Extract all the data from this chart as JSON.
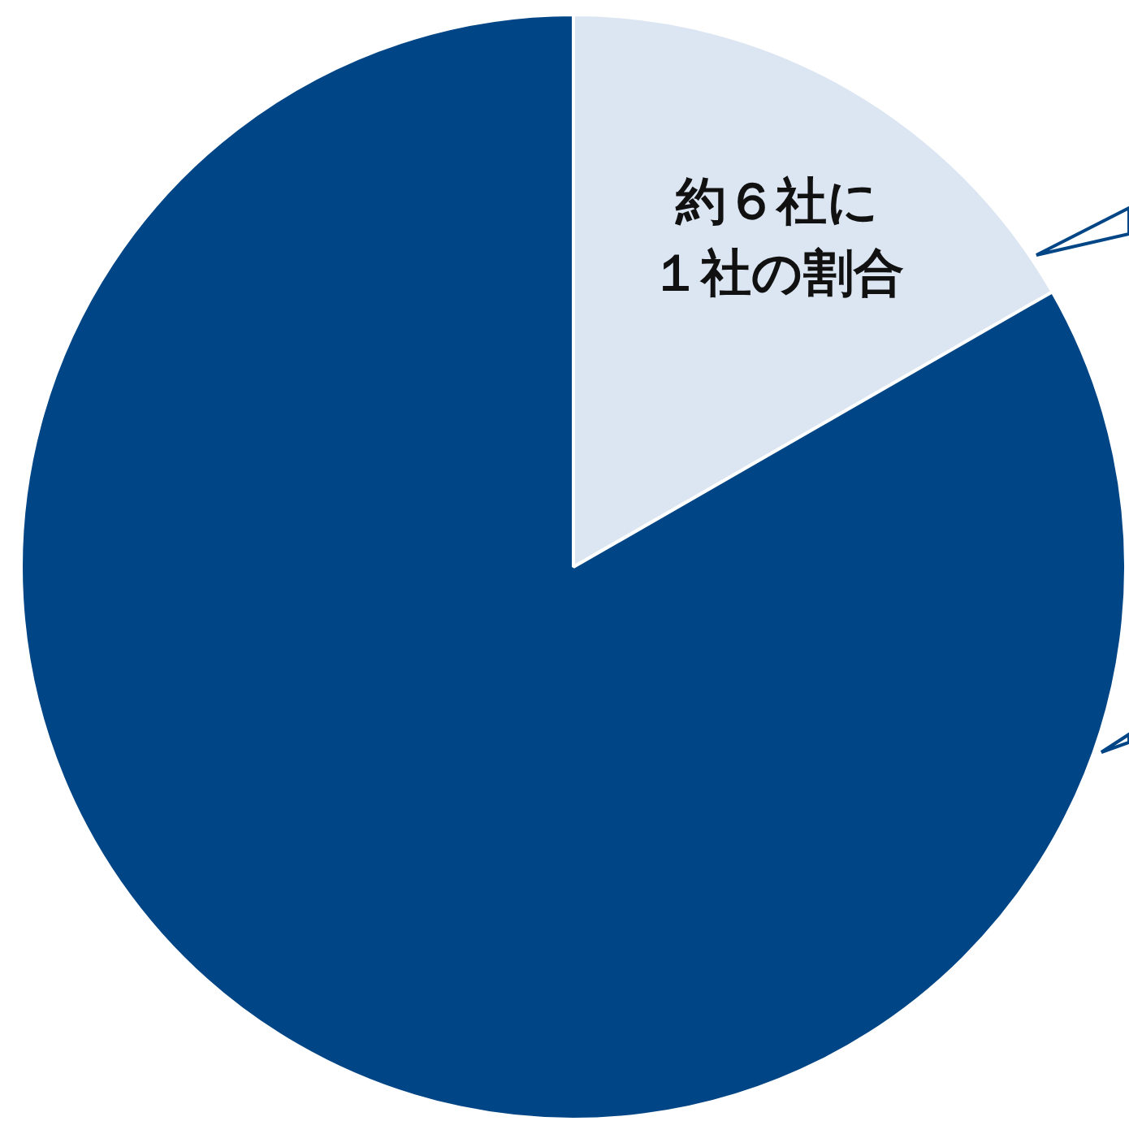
{
  "chart_data": {
    "type": "pie",
    "categories": [
      "約６社に１社の割合",
      null
    ],
    "values": [
      16.7,
      83.3
    ],
    "colors": [
      "#dce6f2",
      "#004585"
    ],
    "legend": false
  }
}
